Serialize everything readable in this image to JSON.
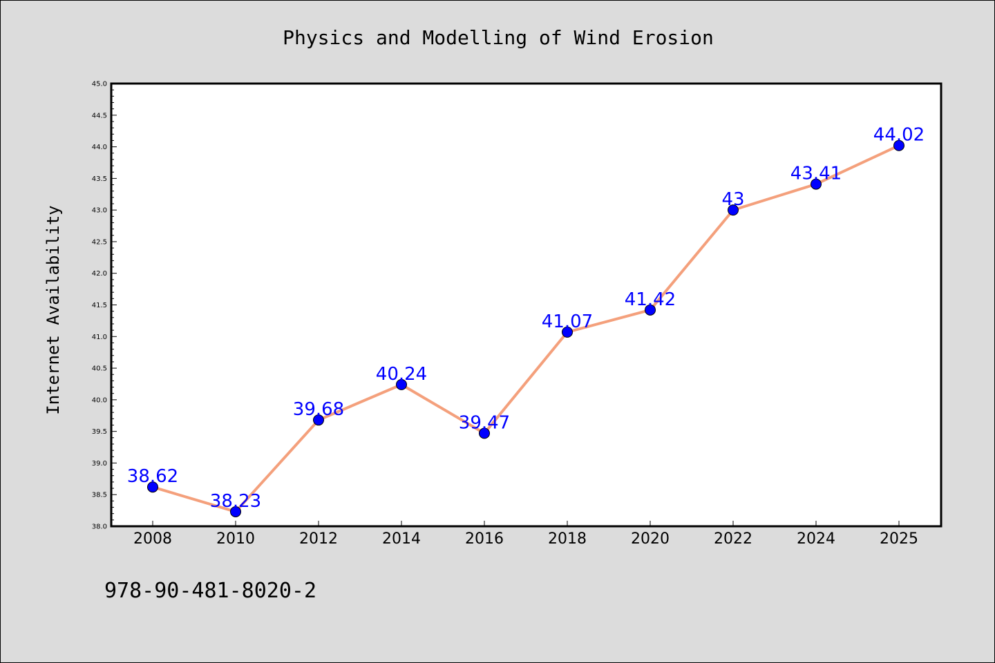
{
  "chart_data": {
    "type": "line",
    "title": "Physics and Modelling of Wind Erosion",
    "xlabel": "",
    "ylabel": "Internet Availability",
    "categories": [
      "2008",
      "2010",
      "2012",
      "2014",
      "2016",
      "2018",
      "2020",
      "2022",
      "2024",
      "2025"
    ],
    "series": [
      {
        "values": [
          38.62,
          38.23,
          39.68,
          40.24,
          39.47,
          41.07,
          41.42,
          43,
          43.41,
          44.02
        ],
        "data_labels": [
          "38.62",
          "38.23",
          "39.68",
          "40.24",
          "39.47",
          "41.07",
          "41.42",
          "43",
          "43.41",
          "44.02"
        ]
      }
    ],
    "ylim": [
      38.0,
      45.0
    ],
    "yticks": [
      "38.0",
      "38.5",
      "39.0",
      "39.5",
      "40.0",
      "40.5",
      "41.0",
      "41.5",
      "42.0",
      "42.5",
      "43.0",
      "43.5",
      "44.0",
      "44.5",
      "45.0"
    ],
    "grid": false,
    "legend": "none",
    "colors": {
      "line": "#f4a07c",
      "marker": "#0000ff",
      "label": "#0000ff",
      "background": "#dcdcdc",
      "plot_background": "#ffffff"
    }
  },
  "footer_text": "978-90-481-8020-2"
}
